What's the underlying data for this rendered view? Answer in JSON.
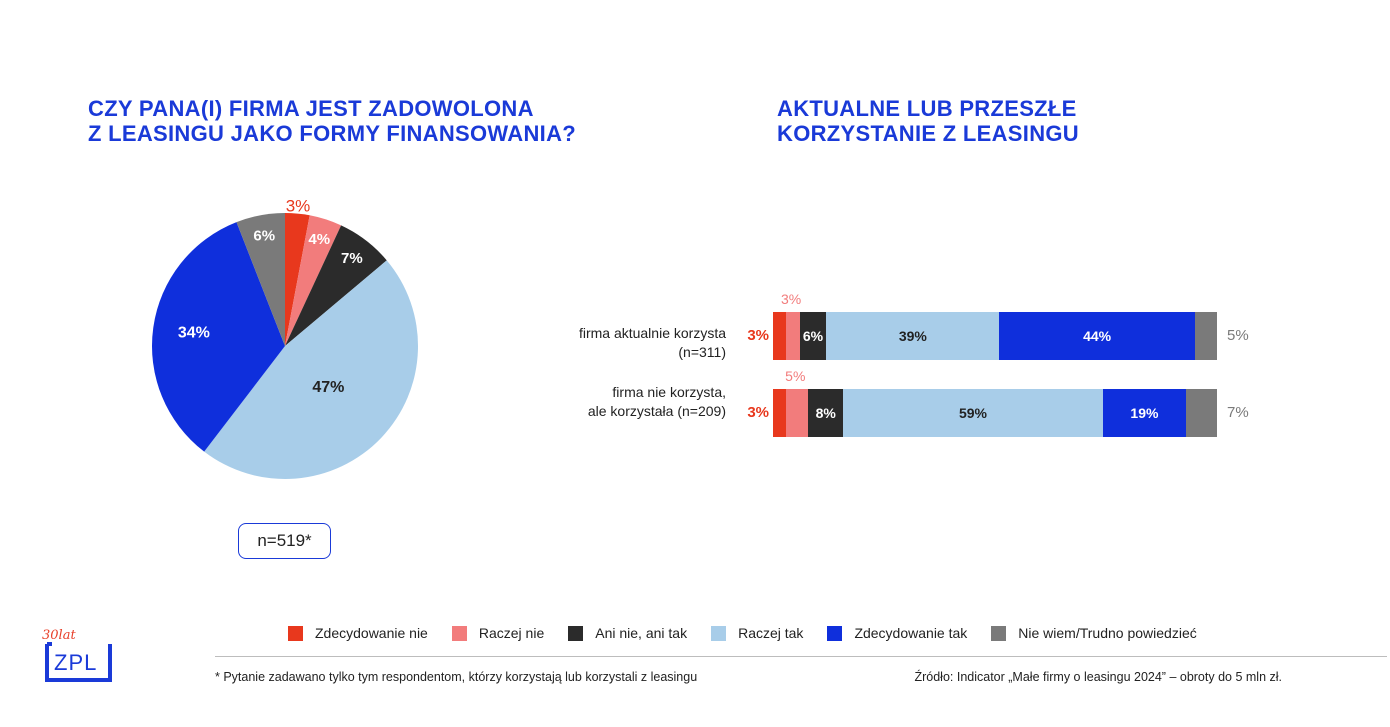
{
  "left_panel": {
    "title_line1": "CZY PANA(I) FIRMA JEST ZADOWOLONA",
    "title_line2": "Z LEASINGU JAKO FORMY FINANSOWANIA?",
    "sample": "n=519*"
  },
  "right_panel": {
    "title_line1": "AKTUALNE LUB PRZESZŁE",
    "title_line2": "KORZYSTANIE Z LEASINGU"
  },
  "colors": {
    "zdecydowanie_nie": "#e8381d",
    "raczej_nie": "#f27c7c",
    "ani_nie_ani_tak": "#2b2b2b",
    "raczej_tak": "#a8cde9",
    "zdecydowanie_tak": "#0f2fdc",
    "nie_wiem": "#7a7a7a",
    "title_blue": "#1a3ad8"
  },
  "chart_data": [
    {
      "type": "pie",
      "categories": [
        "Zdecydowanie nie",
        "Raczej nie",
        "Ani nie, ani tak",
        "Raczej tak",
        "Zdecydowanie tak",
        "Nie wiem/Trudno powiedzieć"
      ],
      "values": [
        3,
        4,
        7,
        47,
        34,
        6
      ],
      "labels": [
        "3%",
        "4%",
        "7%",
        "47%",
        "34%",
        "6%"
      ],
      "title": "CZY PANA(I) FIRMA JEST ZADOWOLONA Z LEASINGU JAKO FORMY FINANSOWANIA?"
    },
    {
      "type": "bar",
      "orientation": "horizontal",
      "stacked": true,
      "title": "AKTUALNE LUB PRZESZŁE KORZYSTANIE Z LEASINGU",
      "categories": [
        [
          "firma aktualnie korzysta",
          "(n=311)"
        ],
        [
          "firma nie korzysta,",
          "ale korzystała (n=209)"
        ]
      ],
      "series": [
        {
          "name": "Zdecydowanie nie",
          "values": [
            3,
            3
          ],
          "labels": [
            "3%",
            "3%"
          ]
        },
        {
          "name": "Raczej nie",
          "values": [
            3,
            5
          ],
          "labels": [
            "3%",
            "5%"
          ]
        },
        {
          "name": "Ani nie, ani tak",
          "values": [
            6,
            8
          ],
          "labels": [
            "6%",
            "8%"
          ]
        },
        {
          "name": "Raczej tak",
          "values": [
            39,
            59
          ],
          "labels": [
            "39%",
            "59%"
          ]
        },
        {
          "name": "Zdecydowanie tak",
          "values": [
            44,
            19
          ],
          "labels": [
            "44%",
            "19%"
          ]
        },
        {
          "name": "Nie wiem/Trudno powiedzieć",
          "values": [
            5,
            7
          ],
          "labels": [
            "5%",
            "7%"
          ]
        }
      ]
    }
  ],
  "legend": [
    {
      "label": "Zdecydowanie nie",
      "color": "#e8381d"
    },
    {
      "label": "Raczej nie",
      "color": "#f27c7c"
    },
    {
      "label": "Ani nie, ani tak",
      "color": "#2b2b2b"
    },
    {
      "label": "Raczej tak",
      "color": "#a8cde9"
    },
    {
      "label": "Zdecydowanie tak",
      "color": "#0f2fdc"
    },
    {
      "label": "Nie wiem/Trudno powiedzieć",
      "color": "#7a7a7a"
    }
  ],
  "footer": {
    "footnote": "* Pytanie zadawano tylko tym respondentom, którzy korzystają lub korzystali z leasingu",
    "source": "Źródło: Indicator „Małe firmy o leasingu 2024” – obroty do 5 mln zł."
  },
  "logo": {
    "years": "30lat",
    "text": "ZPL"
  }
}
